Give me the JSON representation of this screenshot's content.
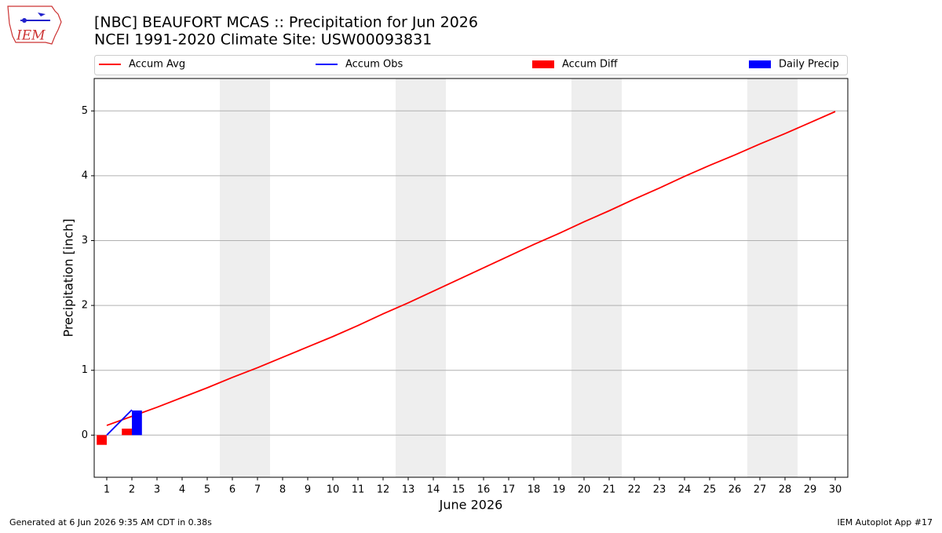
{
  "logo_text": "IEM",
  "chart_data": {
    "type": "combo",
    "title": "[NBC] BEAUFORT MCAS :: Precipitation for Jun 2026",
    "subtitle": "NCEI 1991-2020 Climate Site: USW00093831",
    "xlabel": "June 2026",
    "ylabel": "Precipitation [inch]",
    "x": [
      1,
      2,
      3,
      4,
      5,
      6,
      7,
      8,
      9,
      10,
      11,
      12,
      13,
      14,
      15,
      16,
      17,
      18,
      19,
      20,
      21,
      22,
      23,
      24,
      25,
      26,
      27,
      28,
      29,
      30
    ],
    "xlim": [
      0.5,
      30.5
    ],
    "xticks": [
      1,
      2,
      3,
      4,
      5,
      6,
      7,
      8,
      9,
      10,
      11,
      12,
      13,
      14,
      15,
      16,
      17,
      18,
      19,
      20,
      21,
      22,
      23,
      24,
      25,
      26,
      27,
      28,
      29,
      30
    ],
    "ylim": [
      -0.65,
      5.5
    ],
    "yticks": [
      0,
      1,
      2,
      3,
      4,
      5
    ],
    "grid": true,
    "shaded_spans": [
      [
        5.5,
        7.5
      ],
      [
        12.5,
        14.5
      ],
      [
        19.5,
        21.5
      ],
      [
        26.5,
        28.5
      ]
    ],
    "shade_color": "#eeeeee",
    "series": [
      {
        "name": "Accum Avg",
        "type": "line",
        "color": "#ff0000",
        "values": [
          0.15,
          0.29,
          0.43,
          0.58,
          0.73,
          0.89,
          1.04,
          1.2,
          1.36,
          1.52,
          1.69,
          1.87,
          2.04,
          2.22,
          2.4,
          2.58,
          2.76,
          2.94,
          3.11,
          3.29,
          3.46,
          3.64,
          3.81,
          3.99,
          4.16,
          4.32,
          4.49,
          4.65,
          4.82,
          4.99
        ]
      },
      {
        "name": "Accum Obs",
        "type": "line",
        "color": "#0000ff",
        "values": [
          0,
          0.39,
          null,
          null,
          null,
          null,
          null,
          null,
          null,
          null,
          null,
          null,
          null,
          null,
          null,
          null,
          null,
          null,
          null,
          null,
          null,
          null,
          null,
          null,
          null,
          null,
          null,
          null,
          null,
          null
        ]
      },
      {
        "name": "Accum Diff",
        "type": "bar",
        "offset": "left",
        "color": "#ff0000",
        "values": [
          -0.15,
          0.1,
          null,
          null,
          null,
          null,
          null,
          null,
          null,
          null,
          null,
          null,
          null,
          null,
          null,
          null,
          null,
          null,
          null,
          null,
          null,
          null,
          null,
          null,
          null,
          null,
          null,
          null,
          null,
          null
        ]
      },
      {
        "name": "Daily Precip",
        "type": "bar",
        "offset": "right",
        "color": "#0000ff",
        "values": [
          0,
          0.38,
          null,
          null,
          null,
          null,
          null,
          null,
          null,
          null,
          null,
          null,
          null,
          null,
          null,
          null,
          null,
          null,
          null,
          null,
          null,
          null,
          null,
          null,
          null,
          null,
          null,
          null,
          null,
          null
        ]
      }
    ],
    "footer_left": "Generated at 6 Jun 2026 9:35 AM CDT in 0.38s",
    "footer_right": "IEM Autoplot App #17"
  }
}
